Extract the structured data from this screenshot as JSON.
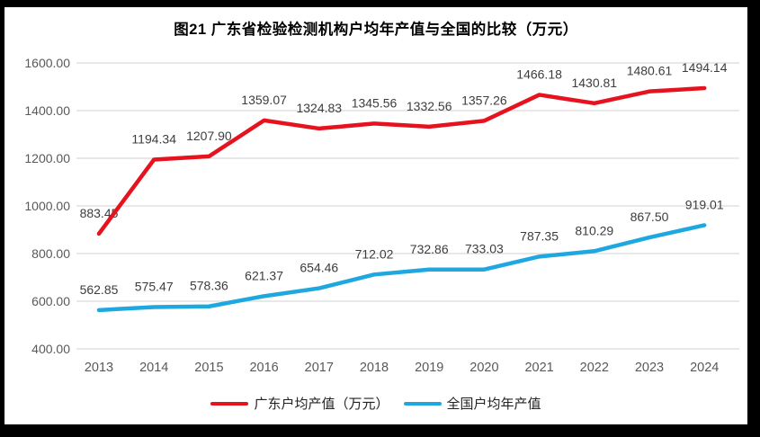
{
  "chart": {
    "title": "图21  广东省检验检测机构户均年产值与全国的比较（万元）"
  },
  "chart_data": {
    "type": "line",
    "title": "图21  广东省检验检测机构户均年产值与全国的比较（万元）",
    "categories": [
      "2013",
      "2014",
      "2015",
      "2016",
      "2017",
      "2018",
      "2019",
      "2020",
      "2021",
      "2022",
      "2023",
      "2024"
    ],
    "series": [
      {
        "name": "广东户均产值（万元）",
        "color": "#e6131f",
        "values": [
          883.45,
          1194.34,
          1207.9,
          1359.07,
          1324.83,
          1345.56,
          1332.56,
          1357.26,
          1466.18,
          1430.81,
          1480.61,
          1494.14
        ]
      },
      {
        "name": "全国户均年产值",
        "color": "#1fa8e0",
        "values": [
          562.85,
          575.47,
          578.36,
          621.37,
          654.46,
          712.02,
          732.86,
          733.03,
          787.35,
          810.29,
          867.5,
          919.01
        ]
      }
    ],
    "xlabel": "",
    "ylabel": "",
    "ylim": [
      400,
      1600
    ],
    "yticks": [
      "400.00",
      "600.00",
      "800.00",
      "1000.00",
      "1200.00",
      "1400.00",
      "1600.00"
    ],
    "grid": true,
    "legend_position": "bottom",
    "colors": {
      "gridline": "#d9d9d9",
      "axis_text": "#595959",
      "data_label_text": "#3d3d3d",
      "frame": "#000000",
      "plot_background": "#ffffff"
    }
  }
}
